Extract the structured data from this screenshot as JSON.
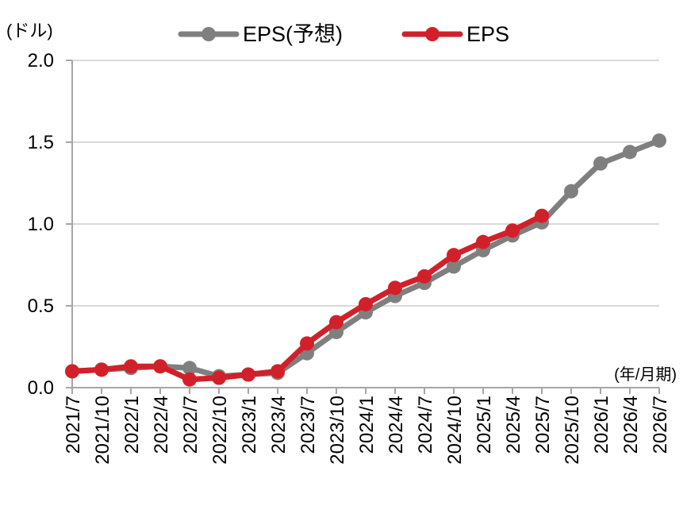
{
  "chart_data": {
    "type": "line",
    "unit_label": "(ドル)",
    "x_unit_label": "(年/月期)",
    "categories": [
      "2021/7",
      "2021/10",
      "2022/1",
      "2022/4",
      "2022/7",
      "2022/10",
      "2023/1",
      "2023/4",
      "2023/7",
      "2023/10",
      "2024/1",
      "2024/4",
      "2024/7",
      "2024/10",
      "2025/1",
      "2025/4",
      "2025/7",
      "2025/10",
      "2026/1",
      "2026/4",
      "2026/7"
    ],
    "ylim": [
      0,
      2.0
    ],
    "yticks": [
      "0.0",
      "0.5",
      "1.0",
      "1.5",
      "2.0"
    ],
    "ytick_values": [
      0,
      0.5,
      1.0,
      1.5,
      2.0
    ],
    "grid": true,
    "legend_position": "top",
    "series": [
      {
        "name": "EPS(予想)",
        "color": "#7f7f7f",
        "values": [
          0.1,
          0.11,
          0.12,
          0.13,
          0.12,
          0.07,
          0.08,
          0.09,
          0.21,
          0.34,
          0.46,
          0.56,
          0.64,
          0.74,
          0.84,
          0.93,
          1.01,
          1.2,
          1.37,
          1.44,
          1.51
        ]
      },
      {
        "name": "EPS",
        "color": "#d2202a",
        "values": [
          0.1,
          0.11,
          0.13,
          0.13,
          0.05,
          0.06,
          0.08,
          0.1,
          0.27,
          0.4,
          0.51,
          0.61,
          0.68,
          0.81,
          0.89,
          0.96,
          1.05,
          null,
          null,
          null,
          null
        ]
      }
    ]
  }
}
